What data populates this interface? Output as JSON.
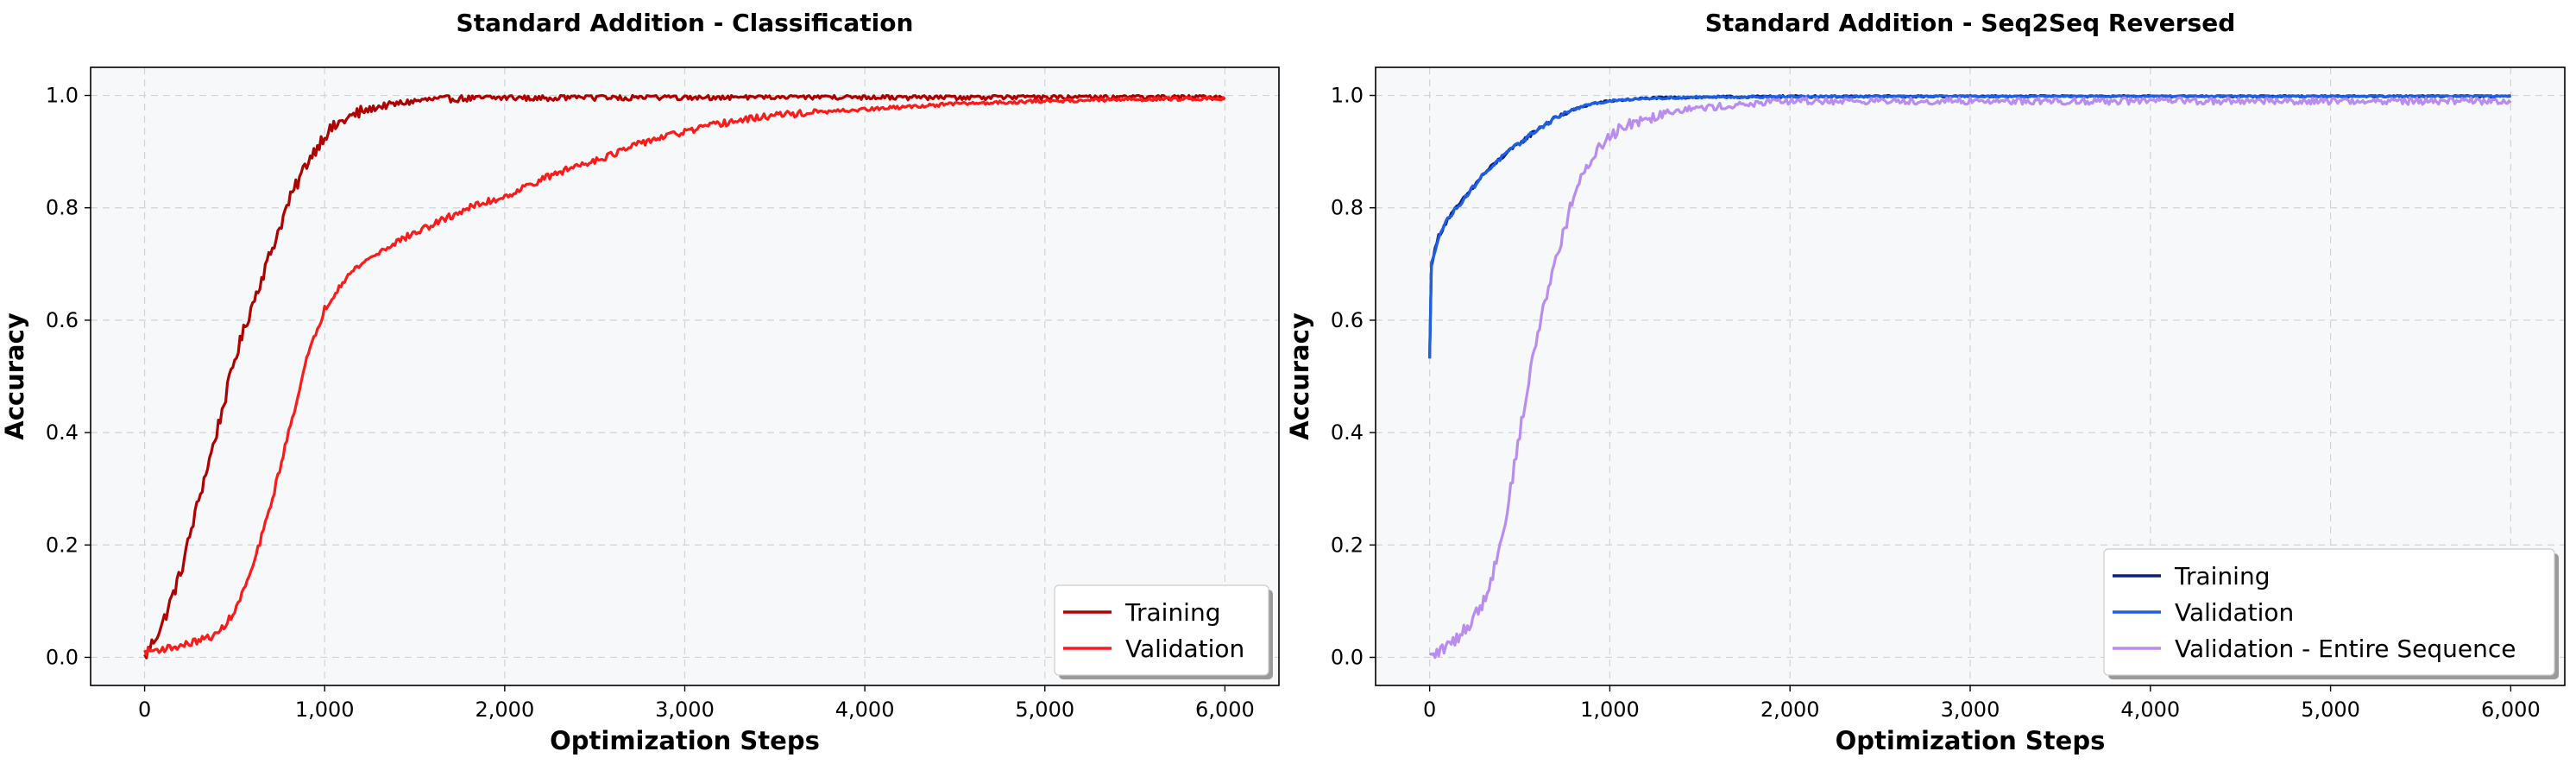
{
  "chart_data": [
    {
      "type": "line",
      "title": "Standard Addition - Classification",
      "xlabel": "Optimization Steps",
      "ylabel": "Accuracy",
      "xlim": [
        -300,
        6300
      ],
      "ylim": [
        -0.05,
        1.05
      ],
      "x_ticks": [
        0,
        1000,
        2000,
        3000,
        4000,
        5000,
        6000
      ],
      "x_tick_labels": [
        "0",
        "1,000",
        "2,000",
        "3,000",
        "4,000",
        "5,000",
        "6,000"
      ],
      "y_ticks": [
        0.0,
        0.2,
        0.4,
        0.6,
        0.8,
        1.0
      ],
      "y_tick_labels": [
        "0.0",
        "0.2",
        "0.4",
        "0.6",
        "0.8",
        "1.0"
      ],
      "grid": true,
      "legend_position": "bottom-right",
      "series": [
        {
          "name": "Training",
          "color": "#b00000",
          "noise": 0.012,
          "x": [
            0,
            100,
            200,
            300,
            400,
            500,
            600,
            700,
            800,
            900,
            1000,
            1100,
            1200,
            1300,
            1400,
            1500,
            1600,
            1800,
            2000,
            2500,
            3000,
            3500,
            4000,
            4500,
            5000,
            5500,
            6000
          ],
          "y": [
            0.0,
            0.06,
            0.15,
            0.28,
            0.4,
            0.53,
            0.63,
            0.72,
            0.81,
            0.88,
            0.93,
            0.955,
            0.97,
            0.98,
            0.985,
            0.99,
            0.993,
            0.995,
            0.996,
            0.997,
            0.998,
            0.998,
            0.998,
            0.998,
            0.998,
            0.998,
            0.998
          ]
        },
        {
          "name": "Validation",
          "color": "#ff1a1a",
          "noise": 0.006,
          "x": [
            0,
            100,
            200,
            300,
            400,
            500,
            600,
            700,
            800,
            900,
            1000,
            1100,
            1200,
            1400,
            1600,
            1800,
            2000,
            2200,
            2400,
            2600,
            2800,
            3000,
            3200,
            3500,
            4000,
            4500,
            5000,
            5500,
            6000
          ],
          "y": [
            0.01,
            0.015,
            0.02,
            0.03,
            0.04,
            0.08,
            0.16,
            0.27,
            0.4,
            0.53,
            0.62,
            0.67,
            0.7,
            0.74,
            0.77,
            0.8,
            0.82,
            0.85,
            0.875,
            0.895,
            0.92,
            0.935,
            0.95,
            0.965,
            0.975,
            0.985,
            0.99,
            0.993,
            0.995
          ]
        }
      ]
    },
    {
      "type": "line",
      "title": "Standard Addition - Seq2Seq Reversed",
      "xlabel": "Optimization Steps",
      "ylabel": "Accuracy",
      "xlim": [
        -300,
        6300
      ],
      "ylim": [
        -0.05,
        1.05
      ],
      "x_ticks": [
        0,
        1000,
        2000,
        3000,
        4000,
        5000,
        6000
      ],
      "x_tick_labels": [
        "0",
        "1,000",
        "2,000",
        "3,000",
        "4,000",
        "5,000",
        "6,000"
      ],
      "y_ticks": [
        0.0,
        0.2,
        0.4,
        0.6,
        0.8,
        1.0
      ],
      "y_tick_labels": [
        "0.0",
        "0.2",
        "0.4",
        "0.6",
        "0.8",
        "1.0"
      ],
      "grid": true,
      "legend_position": "bottom-right",
      "series": [
        {
          "name": "Training",
          "color": "#0a1f7a",
          "noise": 0.004,
          "x": [
            0,
            10,
            50,
            100,
            200,
            300,
            400,
            500,
            600,
            700,
            800,
            900,
            1000,
            1200,
            1500,
            2000,
            3000,
            4000,
            5000,
            6000
          ],
          "y": [
            0.53,
            0.7,
            0.75,
            0.78,
            0.82,
            0.86,
            0.89,
            0.915,
            0.94,
            0.96,
            0.975,
            0.985,
            0.99,
            0.995,
            0.997,
            0.998,
            0.999,
            0.999,
            0.999,
            0.999
          ]
        },
        {
          "name": "Validation",
          "color": "#1f5ee6",
          "noise": 0.004,
          "x": [
            0,
            10,
            50,
            100,
            200,
            300,
            400,
            500,
            600,
            700,
            800,
            900,
            1000,
            1200,
            1500,
            2000,
            3000,
            4000,
            5000,
            6000
          ],
          "y": [
            0.53,
            0.7,
            0.75,
            0.78,
            0.82,
            0.86,
            0.89,
            0.915,
            0.94,
            0.96,
            0.975,
            0.985,
            0.99,
            0.995,
            0.997,
            0.998,
            0.999,
            0.999,
            0.999,
            0.999
          ]
        },
        {
          "name": "Validation - Entire Sequence",
          "color": "#b98cf0",
          "noise": 0.012,
          "x": [
            0,
            100,
            200,
            300,
            350,
            400,
            450,
            500,
            550,
            600,
            700,
            800,
            900,
            1000,
            1100,
            1200,
            1300,
            1400,
            1600,
            1800,
            2000,
            3000,
            4000,
            5000,
            6000
          ],
          "y": [
            0.0,
            0.02,
            0.05,
            0.1,
            0.15,
            0.21,
            0.3,
            0.4,
            0.49,
            0.58,
            0.71,
            0.82,
            0.89,
            0.93,
            0.95,
            0.96,
            0.97,
            0.975,
            0.98,
            0.985,
            0.99,
            0.99,
            0.99,
            0.99,
            0.99
          ]
        }
      ]
    }
  ]
}
